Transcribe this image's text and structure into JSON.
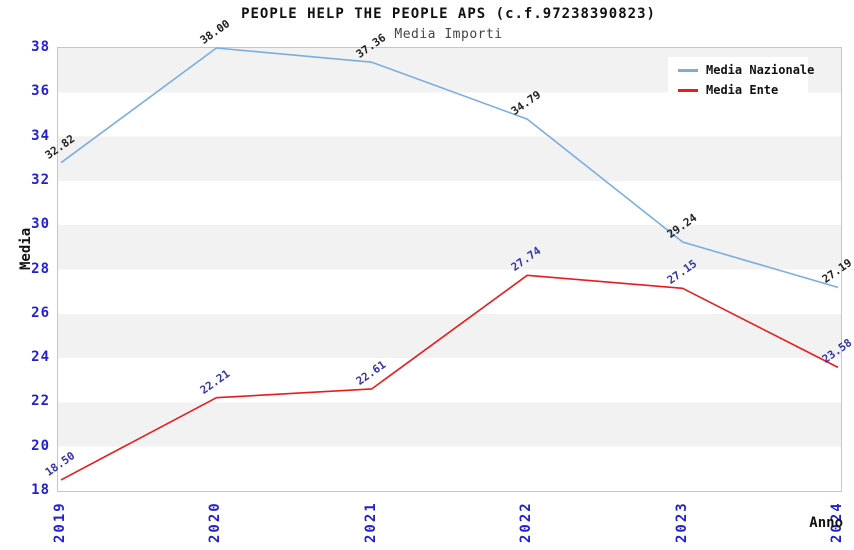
{
  "title": "PEOPLE HELP THE PEOPLE APS (c.f.97238390823)",
  "subtitle": "Media Importi",
  "legend": {
    "items": [
      {
        "label": "Media Nazionale"
      },
      {
        "label": "Media Ente"
      }
    ]
  },
  "chart_data": {
    "type": "line",
    "title": "PEOPLE HELP THE PEOPLE APS (c.f.97238390823)",
    "subtitle": "Media Importi",
    "xlabel": "Anno",
    "ylabel": "Media",
    "categories": [
      "2019",
      "2020",
      "2021",
      "2022",
      "2023",
      "2024"
    ],
    "series": [
      {
        "name": "Media Nazionale",
        "color": "#7aade0",
        "label_color": "#222222",
        "values": [
          32.82,
          38.0,
          37.36,
          34.79,
          29.24,
          27.19
        ]
      },
      {
        "name": "Media Ente",
        "color": "#e81c1c",
        "label_color": "#3333aa",
        "values": [
          18.5,
          22.21,
          22.61,
          27.74,
          27.15,
          23.58
        ]
      }
    ],
    "ylim": [
      18,
      38
    ],
    "y_ticks": [
      18,
      20,
      22,
      24,
      26,
      28,
      30,
      32,
      34,
      36,
      38
    ],
    "grid": "alternating-horizontal-bands",
    "band_colors": [
      "#f2f2f2",
      "#ffffff"
    ],
    "legend_position": "top-right",
    "tick_label_color": "#2222cc",
    "value_label_decimals": 2
  }
}
